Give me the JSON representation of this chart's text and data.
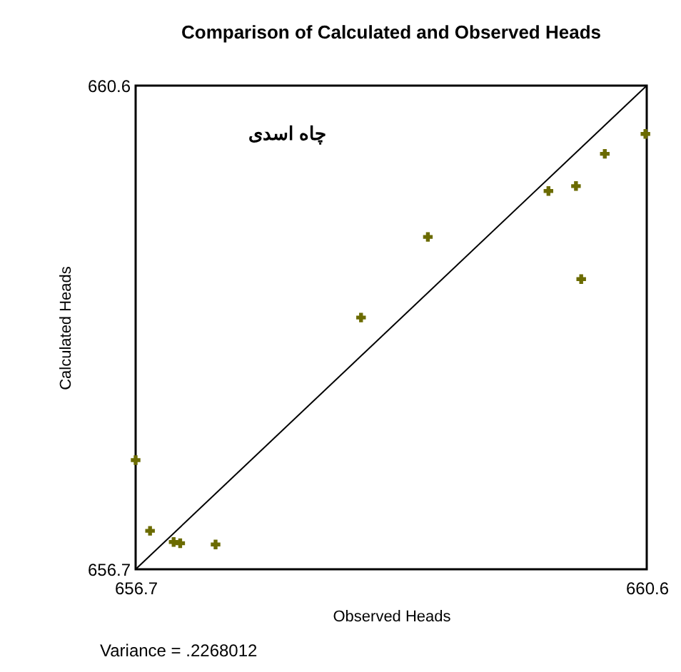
{
  "chart_data": {
    "type": "scatter",
    "title": "Comparison of Calculated and Observed Heads",
    "xlabel": "Observed Heads",
    "ylabel": "Calculated Heads",
    "xlim": [
      656.7,
      660.6
    ],
    "ylim": [
      656.7,
      660.6
    ],
    "xticks": [
      656.7,
      660.6
    ],
    "yticks": [
      656.7,
      660.6
    ],
    "grid": false,
    "series": [
      {
        "marker": "cross",
        "color": "#6b6b00",
        "x": [
          656.7,
          656.81,
          656.99,
          657.04,
          657.31,
          658.42,
          658.93,
          659.85,
          660.06,
          660.28,
          660.1,
          660.59
        ],
        "values": [
          657.58,
          657.01,
          656.92,
          656.91,
          656.9,
          658.73,
          659.38,
          659.75,
          659.79,
          660.05,
          659.04,
          660.21
        ]
      },
      {
        "type": "line",
        "marker": "none",
        "color": "#000000",
        "x": [
          656.7,
          660.6
        ],
        "values": [
          656.7,
          660.6
        ]
      }
    ],
    "annotations": [
      "چاه اسدی",
      "Variance = .2268012"
    ]
  }
}
